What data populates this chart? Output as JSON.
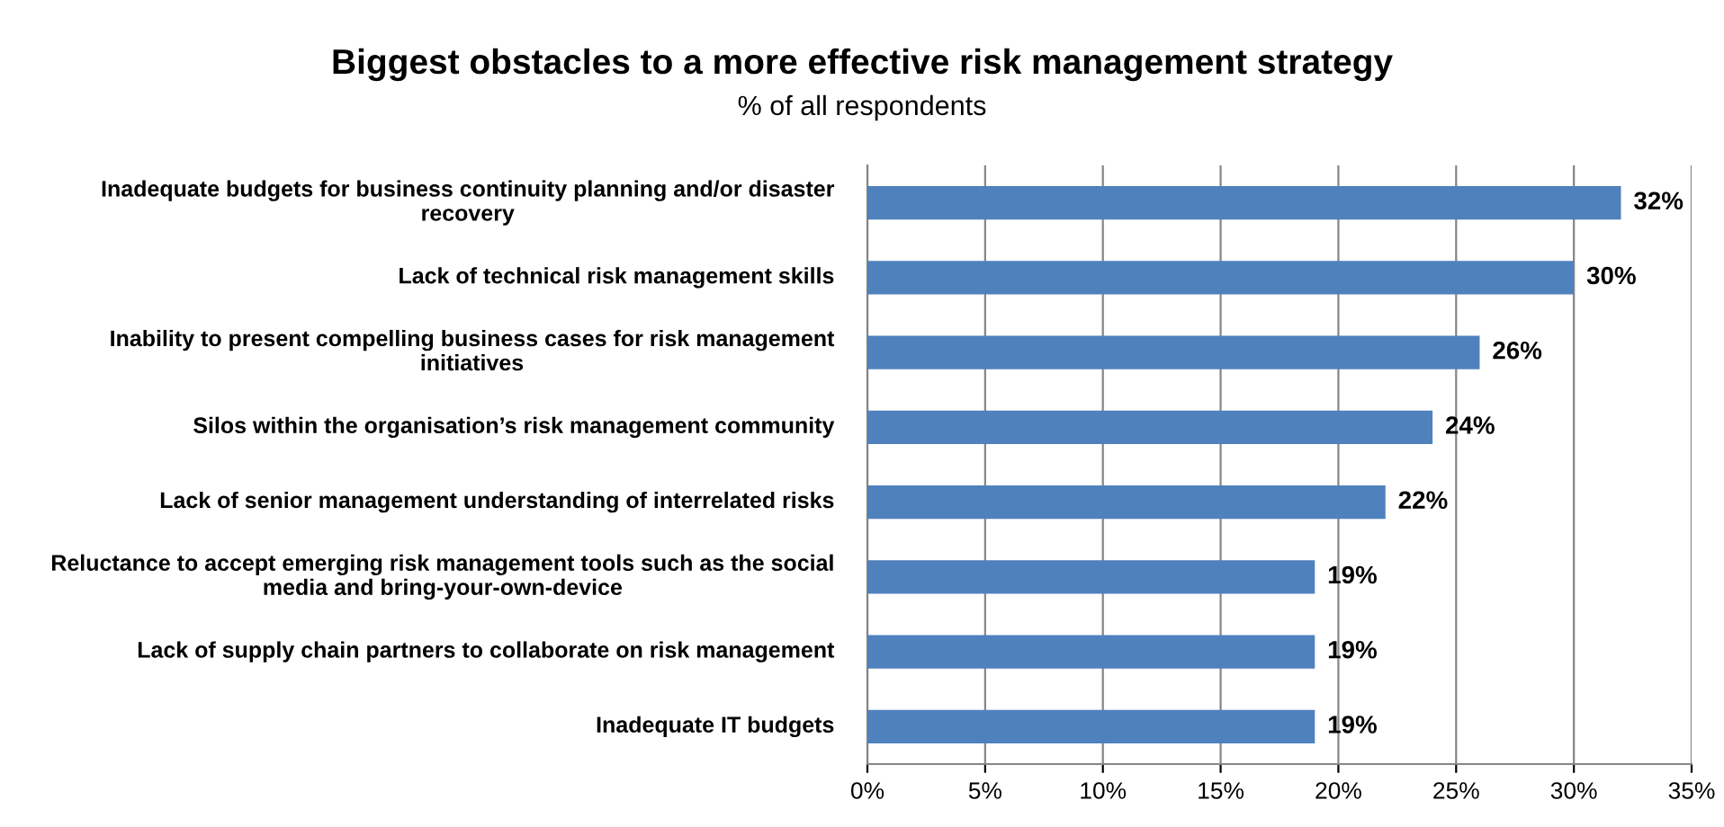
{
  "chart_data": {
    "type": "bar",
    "orientation": "horizontal",
    "title": "Biggest obstacles to a more effective risk management strategy",
    "subtitle": "% of all respondents",
    "categories": [
      "Inadequate budgets for business continuity planning and/or disaster recovery",
      "Lack of technical risk management skills",
      "Inability to present compelling business cases for risk management initiatives",
      "Silos within the organisation’s risk management community",
      "Lack of senior management understanding of interrelated risks",
      "Reluctance to accept emerging risk management tools such as the social media and bring-your-own-device",
      "Lack of supply chain partners to collaborate on risk management",
      "Inadequate IT budgets"
    ],
    "values": [
      32,
      30,
      26,
      24,
      22,
      19,
      19,
      19
    ],
    "value_labels": [
      "32%",
      "30%",
      "26%",
      "24%",
      "22%",
      "19%",
      "19%",
      "19%"
    ],
    "color": "#4f81bd",
    "xlim": [
      0,
      35
    ],
    "xticks": [
      {
        "value": 0,
        "label": "0%"
      },
      {
        "value": 5,
        "label": "5%"
      },
      {
        "value": 10,
        "label": "10%"
      },
      {
        "value": 15,
        "label": "15%"
      },
      {
        "value": 20,
        "label": "20%"
      },
      {
        "value": 25,
        "label": "25%"
      },
      {
        "value": 30,
        "label": "30%"
      },
      {
        "value": 35,
        "label": "35%"
      }
    ],
    "grid": "x"
  }
}
